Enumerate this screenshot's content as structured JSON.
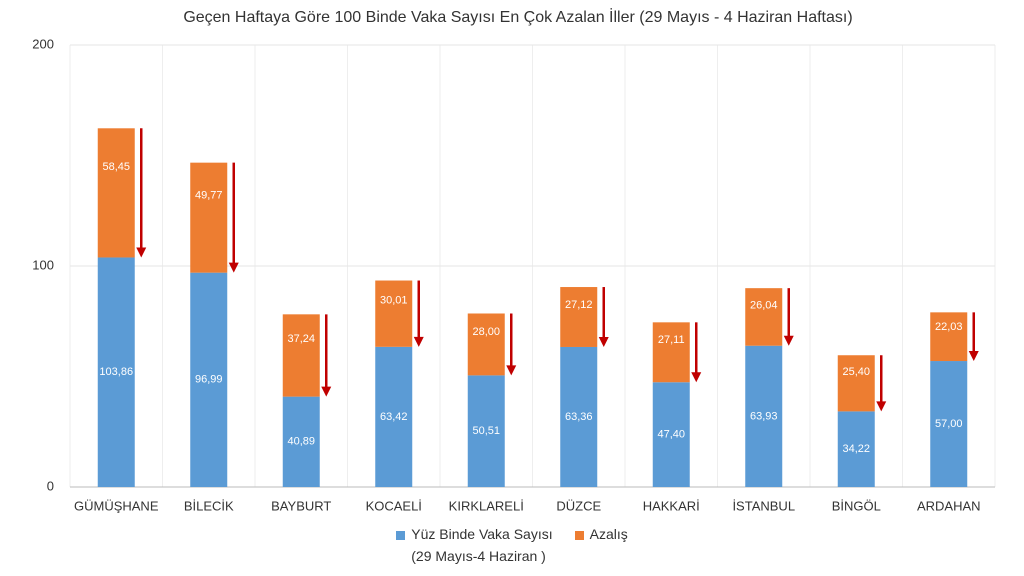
{
  "chart_data": {
    "type": "stacked_bar",
    "title": "Geçen Haftaya Göre 100 Binde Vaka Sayısı En Çok Azalan İller (29 Mayıs - 4 Haziran Haftası)",
    "categories": [
      "GÜMÜŞHANE",
      "BİLECİK",
      "BAYBURT",
      "KOCAELİ",
      "KIRKLARELİ",
      "DÜZCE",
      "HAKKARİ",
      "İSTANBUL",
      "BİNGÖL",
      "ARDAHAN"
    ],
    "series": [
      {
        "name": "Yüz Binde Vaka Sayısı\n(29 Mayıs-4 Haziran )",
        "color": "#5b9bd5",
        "values": [
          103.86,
          96.99,
          40.89,
          63.42,
          50.51,
          63.36,
          47.4,
          63.93,
          34.22,
          57.0
        ],
        "value_labels": [
          "103,86",
          "96,99",
          "40,89",
          "63,42",
          "50,51",
          "63,36",
          "47,40",
          "63,93",
          "34,22",
          "57,00"
        ]
      },
      {
        "name": "Azalış",
        "color": "#ed7d31",
        "values": [
          58.45,
          49.77,
          37.24,
          30.01,
          28.0,
          27.12,
          27.11,
          26.04,
          25.4,
          22.03
        ],
        "value_labels": [
          "58,45",
          "49,77",
          "37,24",
          "30,01",
          "28,00",
          "27,12",
          "27,11",
          "26,04",
          "25,40",
          "22,03"
        ]
      }
    ],
    "arrow_color": "#c00000",
    "ylim": [
      0,
      200
    ],
    "yticks": [
      0,
      100,
      200
    ],
    "grid": true,
    "legend": "bottom"
  }
}
